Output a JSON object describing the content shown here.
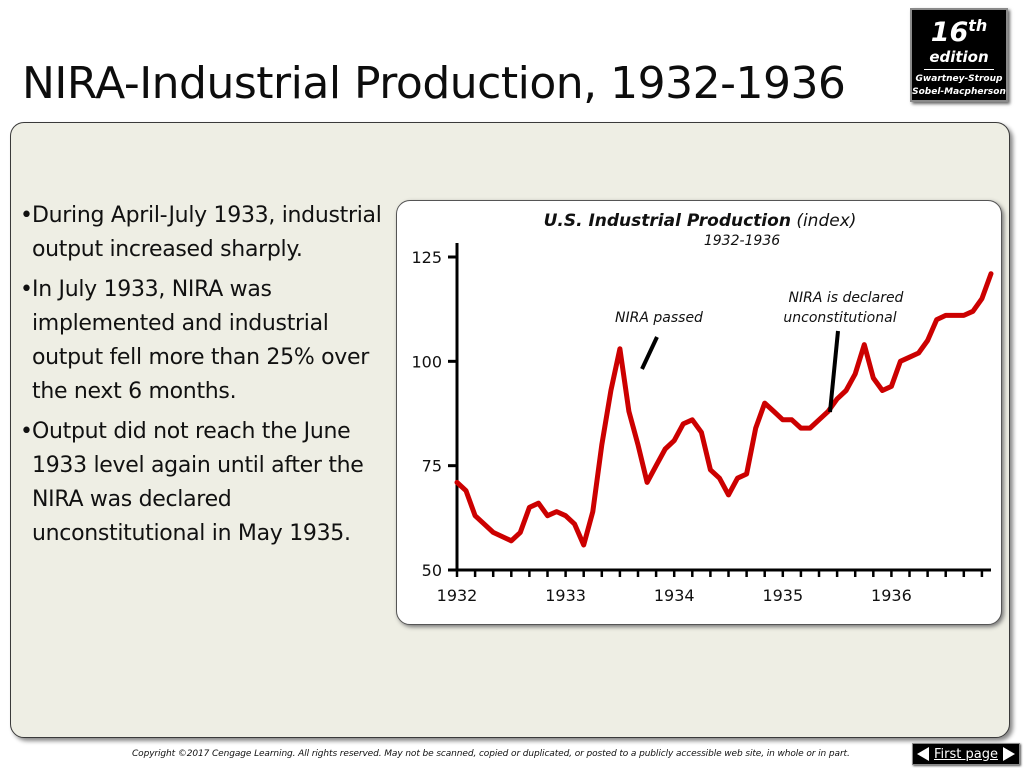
{
  "slide": {
    "title": "NIRA-Industrial Production, 1932-1936"
  },
  "badge": {
    "edition_number": "16",
    "edition_suffix": "th",
    "edition_word": "edition",
    "author_line_1": "Gwartney-Stroup",
    "author_line_2": "Sobel-Macpherson"
  },
  "bullets": [
    "During April-July 1933, industrial output increased sharply.",
    "In July 1933, NIRA was implemented and industrial output fell more than 25% over the next 6 months.",
    "Output did not reach the June 1933 level again until after the NIRA was declared unconstitutional in May 1935."
  ],
  "bullet_marker": "•",
  "footer": {
    "copyright": "Copyright ©2017 Cengage Learning. All rights reserved. May not be scanned, copied or duplicated, or posted to a publicly accessible web site, in whole or in part.",
    "first_page_label": "First page"
  },
  "colors": {
    "series_line": "#cc0000",
    "panel_background": "#eeeee4",
    "badge_background": "#000000"
  },
  "icons": {
    "first_page_left": "arrow-left-icon",
    "first_page_right": "arrow-right-icon"
  },
  "chart_data": {
    "type": "line",
    "title": "U.S. Industrial Production",
    "title_suffix": "(index)",
    "subtitle": "1932-1936",
    "xlabel": "",
    "ylabel": "",
    "x_tick_labels": [
      "1932",
      "1933",
      "1934",
      "1935",
      "1936"
    ],
    "y_ticks": [
      50,
      75,
      100,
      125
    ],
    "ylim": [
      50,
      125
    ],
    "xlim": [
      1932.0,
      1936.917
    ],
    "grid": false,
    "legend": "none",
    "series": [
      {
        "x": [
          1932.0,
          1932.083,
          1932.167,
          1932.25,
          1932.333,
          1932.417,
          1932.5,
          1932.583,
          1932.667,
          1932.75,
          1932.833,
          1932.917,
          1933.0,
          1933.083,
          1933.167,
          1933.25,
          1933.333,
          1933.417,
          1933.5,
          1933.583,
          1933.667,
          1933.75,
          1933.833,
          1933.917,
          1934.0,
          1934.083,
          1934.167,
          1934.25,
          1934.333,
          1934.417,
          1934.5,
          1934.583,
          1934.667,
          1934.75,
          1934.833,
          1934.917,
          1935.0,
          1935.083,
          1935.167,
          1935.25,
          1935.333,
          1935.417,
          1935.5,
          1935.583,
          1935.667,
          1935.75,
          1935.833,
          1935.917,
          1936.0,
          1936.083,
          1936.167,
          1936.25,
          1936.333,
          1936.417,
          1936.5,
          1936.583,
          1936.667,
          1936.75,
          1936.833,
          1936.917
        ],
        "values": [
          71,
          69,
          63,
          61,
          59,
          58,
          57,
          59,
          65,
          66,
          63,
          64,
          63,
          61,
          56,
          64,
          80,
          93,
          103,
          88,
          80,
          71,
          75,
          79,
          81,
          85,
          86,
          83,
          74,
          72,
          68,
          72,
          73,
          84,
          90,
          88,
          86,
          86,
          84,
          84,
          86,
          88,
          91,
          93,
          97,
          104,
          96,
          93,
          94,
          100,
          101,
          102,
          105,
          110,
          111,
          111,
          111,
          112,
          115,
          121
        ]
      }
    ],
    "annotations": [
      {
        "text": "NIRA passed",
        "x": 1933.75
      },
      {
        "text_line_1": "NIRA is declared",
        "text_line_2": "unconstitutional",
        "x": 1935.417
      }
    ]
  }
}
